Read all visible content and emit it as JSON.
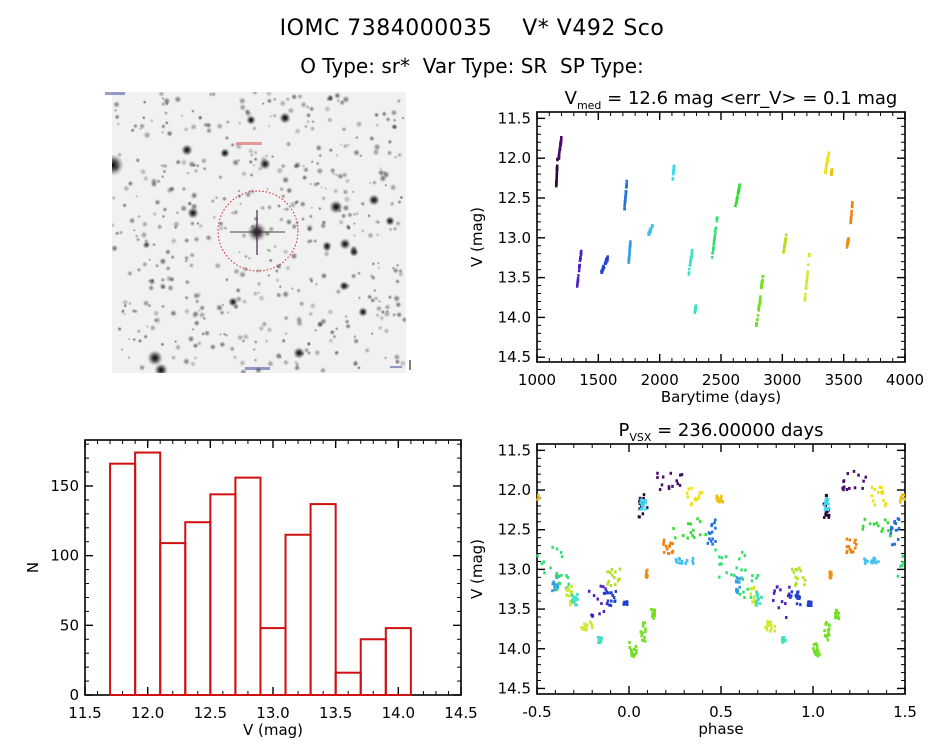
{
  "header": {
    "object_line": "IOMC 7384000035    V* V492 Sco",
    "type_line": "O Type: sr*  Var Type: SR  SP Type:"
  },
  "finder_image": {
    "type": "image",
    "content": "grayscale star field, target star circled in red",
    "marker_color": "#cc2222"
  },
  "chart_data": [
    {
      "id": "histogram",
      "type": "bar",
      "style": "histogram-outline",
      "color": "#d01010",
      "xlabel": "V (mag)",
      "ylabel": "N",
      "xlim": [
        11.5,
        14.5
      ],
      "ylim": [
        0,
        183
      ],
      "xticks": [
        "11.5",
        "12.0",
        "12.5",
        "13.0",
        "13.5",
        "14.0",
        "14.5"
      ],
      "yticks": [
        "0",
        "50",
        "100",
        "150"
      ],
      "bin_edges": [
        11.7,
        11.9,
        12.1,
        12.3,
        12.5,
        12.7,
        12.9,
        13.1,
        13.3,
        13.5,
        13.7,
        13.9,
        14.1
      ],
      "values": [
        166,
        174,
        109,
        124,
        144,
        156,
        48,
        115,
        137,
        16,
        40,
        48
      ]
    },
    {
      "id": "light-curve",
      "type": "scatter",
      "title_main": "V",
      "title_sub": "med",
      "title_rest": " = 12.6 mag <err_V> = 0.1 mag",
      "xlabel": "Barytime (days)",
      "ylabel": "V (mag)",
      "xlim": [
        1000,
        4000
      ],
      "ylim": [
        11.42,
        14.56
      ],
      "y_inverted": true,
      "xticks": [
        "1000",
        "1500",
        "2000",
        "2500",
        "3000",
        "3500",
        "4000"
      ],
      "yticks": [
        "11.5",
        "12.0",
        "12.5",
        "13.0",
        "13.5",
        "14.0",
        "14.5"
      ],
      "clusters": [
        {
          "t": [
            1155,
            1165
          ],
          "v": [
            12.0,
            12.35
          ],
          "color": "#2a0a3a"
        },
        {
          "t": [
            1175,
            1200
          ],
          "v": [
            11.7,
            12.0
          ],
          "color": "#4a0a6a"
        },
        {
          "t": [
            1325,
            1360
          ],
          "v": [
            13.15,
            13.6
          ],
          "color": "#4a20c0"
        },
        {
          "t": [
            1520,
            1575
          ],
          "v": [
            13.25,
            13.45
          ],
          "color": "#2040d0"
        },
        {
          "t": [
            1710,
            1730
          ],
          "v": [
            12.3,
            12.65
          ],
          "color": "#2070e0"
        },
        {
          "t": [
            1745,
            1760
          ],
          "v": [
            13.05,
            13.3
          ],
          "color": "#30a0e0"
        },
        {
          "t": [
            1905,
            1940
          ],
          "v": [
            12.85,
            12.95
          ],
          "color": "#40c0f0"
        },
        {
          "t": [
            2105,
            2115
          ],
          "v": [
            12.1,
            12.25
          ],
          "color": "#40d8f0"
        },
        {
          "t": [
            2235,
            2265
          ],
          "v": [
            13.15,
            13.45
          ],
          "color": "#40e0c8"
        },
        {
          "t": [
            2285,
            2295
          ],
          "v": [
            13.85,
            13.92
          ],
          "color": "#40e0c0"
        },
        {
          "t": [
            2425,
            2470
          ],
          "v": [
            12.7,
            13.25
          ],
          "color": "#30e070"
        },
        {
          "t": [
            2615,
            2650
          ],
          "v": [
            12.35,
            12.6
          ],
          "color": "#30e030"
        },
        {
          "t": [
            2785,
            2820
          ],
          "v": [
            13.75,
            14.1
          ],
          "color": "#70e020"
        },
        {
          "t": [
            2825,
            2840
          ],
          "v": [
            13.5,
            13.62
          ],
          "color": "#70e020"
        },
        {
          "t": [
            3005,
            3030
          ],
          "v": [
            12.97,
            13.2
          ],
          "color": "#b0e020"
        },
        {
          "t": [
            3180,
            3220
          ],
          "v": [
            13.2,
            13.8
          ],
          "color": "#d0e830"
        },
        {
          "t": [
            3345,
            3380
          ],
          "v": [
            11.9,
            12.2
          ],
          "color": "#f0e010"
        },
        {
          "t": [
            3395,
            3405
          ],
          "v": [
            12.15,
            12.2
          ],
          "color": "#f0c010"
        },
        {
          "t": [
            3525,
            3540
          ],
          "v": [
            13.0,
            13.1
          ],
          "color": "#f09010"
        },
        {
          "t": [
            3555,
            3570
          ],
          "v": [
            12.55,
            12.8
          ],
          "color": "#f08010"
        }
      ]
    },
    {
      "id": "phased-light-curve",
      "type": "scatter",
      "title_main": "P",
      "title_sub": "VSX",
      "title_rest": " = 236.00000 days",
      "period_days": 236.0,
      "xlabel": "phase",
      "ylabel": "V (mag)",
      "xlim": [
        -0.5,
        1.5
      ],
      "ylim": [
        11.42,
        14.57
      ],
      "y_inverted": true,
      "xticks": [
        "-0.5",
        "0.0",
        "0.5",
        "1.0",
        "1.5"
      ],
      "yticks": [
        "11.5",
        "12.0",
        "12.5",
        "13.0",
        "13.5",
        "14.0",
        "14.5"
      ],
      "clusters": [
        {
          "p": [
            0.14,
            0.29
          ],
          "v": [
            11.75,
            12.0
          ],
          "color": "#4a0a6a"
        },
        {
          "p": [
            0.05,
            0.1
          ],
          "v": [
            12.05,
            12.35
          ],
          "color": "#2a0a3a"
        },
        {
          "p": [
            0.06,
            0.09
          ],
          "v": [
            12.1,
            12.25
          ],
          "color": "#40d8f0"
        },
        {
          "p": [
            0.31,
            0.4
          ],
          "v": [
            11.95,
            12.2
          ],
          "color": "#f0e010"
        },
        {
          "p": [
            0.47,
            0.51
          ],
          "v": [
            12.05,
            12.15
          ],
          "color": "#f0c010"
        },
        {
          "p": [
            0.24,
            0.42
          ],
          "v": [
            12.35,
            12.6
          ],
          "color": "#30e030"
        },
        {
          "p": [
            0.18,
            0.24
          ],
          "v": [
            12.6,
            12.8
          ],
          "color": "#f08010"
        },
        {
          "p": [
            0.25,
            0.37
          ],
          "v": [
            12.85,
            12.92
          ],
          "color": "#40c0f0"
        },
        {
          "p": [
            0.42,
            0.47
          ],
          "v": [
            12.35,
            12.7
          ],
          "color": "#2070e0"
        },
        {
          "p": [
            0.46,
            0.64
          ],
          "v": [
            12.7,
            13.1
          ],
          "color": "#30e070"
        },
        {
          "p": [
            0.58,
            0.62
          ],
          "v": [
            13.05,
            13.3
          ],
          "color": "#30a0e0"
        },
        {
          "p": [
            0.6,
            0.7
          ],
          "v": [
            13.0,
            13.35
          ],
          "color": "#30e070"
        },
        {
          "p": [
            0.66,
            0.69
          ],
          "v": [
            13.2,
            13.45
          ],
          "color": "#d0e830"
        },
        {
          "p": [
            0.69,
            0.72
          ],
          "v": [
            13.3,
            13.45
          ],
          "color": "#40e0c8"
        },
        {
          "p": [
            0.78,
            0.88
          ],
          "v": [
            13.2,
            13.6
          ],
          "color": "#4a20c0"
        },
        {
          "p": [
            0.87,
            0.93
          ],
          "v": [
            13.25,
            13.45
          ],
          "color": "#2040d0"
        },
        {
          "p": [
            0.97,
            0.99
          ],
          "v": [
            13.4,
            13.45
          ],
          "color": "#2040d0"
        },
        {
          "p": [
            0.74,
            0.8
          ],
          "v": [
            13.65,
            13.8
          ],
          "color": "#d0e830"
        },
        {
          "p": [
            0.83,
            0.85
          ],
          "v": [
            13.85,
            13.92
          ],
          "color": "#40e0c0"
        },
        {
          "p": [
            0.88,
            0.96
          ],
          "v": [
            12.97,
            13.2
          ],
          "color": "#b0e020"
        },
        {
          "p": [
            0.0,
            0.04
          ],
          "v": [
            13.9,
            14.1
          ],
          "color": "#70e020"
        },
        {
          "p": [
            0.06,
            0.09
          ],
          "v": [
            13.65,
            13.9
          ],
          "color": "#70e020"
        },
        {
          "p": [
            0.12,
            0.14
          ],
          "v": [
            13.5,
            13.62
          ],
          "color": "#70e020"
        },
        {
          "p": [
            0.09,
            0.1
          ],
          "v": [
            13.0,
            13.1
          ],
          "color": "#f09010"
        }
      ]
    }
  ]
}
